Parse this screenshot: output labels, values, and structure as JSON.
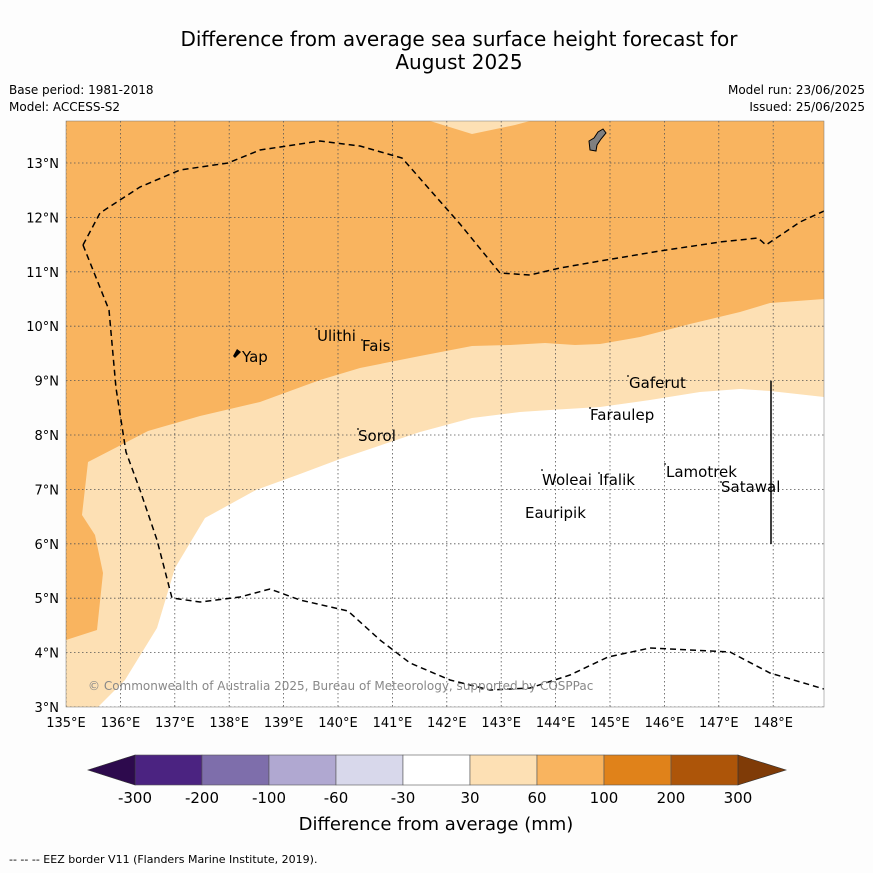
{
  "header": {
    "title_line1": "Difference from average sea surface height forecast for",
    "title_line2": "August 2025",
    "base_period": "Base period: 1981-2018",
    "model": "Model: ACCESS-S2",
    "model_run": "Model run: 23/06/2025",
    "issued": "Issued: 25/06/2025"
  },
  "map": {
    "lon_labels": [
      "135°E",
      "136°E",
      "137°E",
      "138°E",
      "139°E",
      "140°E",
      "141°E",
      "142°E",
      "143°E",
      "144°E",
      "145°E",
      "146°E",
      "147°E",
      "148°E"
    ],
    "lat_labels": [
      "3°N",
      "4°N",
      "5°N",
      "6°N",
      "7°N",
      "8°N",
      "9°N",
      "10°N",
      "11°N",
      "12°N",
      "13°N"
    ],
    "places": [
      {
        "name": "Yap"
      },
      {
        "name": "Ulithi"
      },
      {
        "name": "Fais"
      },
      {
        "name": "Gaferut"
      },
      {
        "name": "Faraulep"
      },
      {
        "name": "Sorol"
      },
      {
        "name": "Woleai"
      },
      {
        "name": "Ifalik"
      },
      {
        "name": "Lamotrek"
      },
      {
        "name": "Satawal"
      },
      {
        "name": "Eauripik"
      }
    ],
    "copyright": "© Commonwealth of Australia 2025, Bureau of Meteorology, supported by COSPPac"
  },
  "colorbar": {
    "tick_labels": [
      "-300",
      "-200",
      "-100",
      "-60",
      "-30",
      "30",
      "60",
      "100",
      "200",
      "300"
    ],
    "colors": [
      "#4b2381",
      "#7e6eab",
      "#b0a8d1",
      "#d8d8eb",
      "#ffffff",
      "#fde0b4",
      "#f9b45f",
      "#e0821a",
      "#ad5509"
    ],
    "under_color": "#2d0a4d",
    "over_color": "#7f3b07",
    "label": "Difference from average (mm)"
  },
  "footer": {
    "legend_text": "--  --  -- EEZ border V11 (Flanders Marine Institute, 2019)."
  }
}
